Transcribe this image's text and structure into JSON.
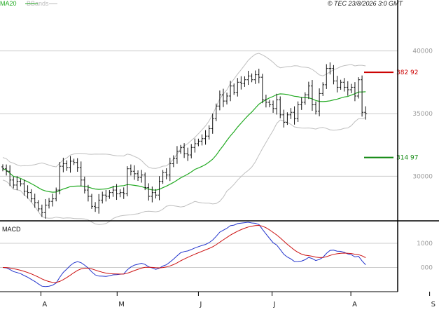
{
  "header": {
    "ma_label": "MA20",
    "bb_label": "BBands",
    "copyright": "© TEC 23/8/2026 3:0 GMT"
  },
  "colors": {
    "ma": "#22aa22",
    "bb": "#bfbfbf",
    "price": "#111111",
    "macd_line": "#2233cc",
    "signal_line": "#cc1111",
    "resistance": "#cc0000",
    "support": "#118811",
    "grid": "#cccccc",
    "axis": "#000000"
  },
  "chart_data": [
    {
      "type": "ohlc",
      "name": "price",
      "y_ticks": [
        {
          "value": 40000,
          "label": "40000"
        },
        {
          "value": 35000,
          "label": "35000"
        },
        {
          "value": 30000,
          "label": "30000"
        }
      ],
      "ylim": [
        26500,
        43500
      ],
      "levels": [
        {
          "value": 38292,
          "label": "382 92",
          "color": "#cc0000"
        },
        {
          "value": 31497,
          "label": "314 97",
          "color": "#118811"
        }
      ],
      "closes": [
        30600,
        30400,
        29700,
        29300,
        29600,
        29400,
        28800,
        28700,
        28200,
        27900,
        27400,
        27100,
        27700,
        28000,
        28200,
        28900,
        30800,
        31000,
        30700,
        31200,
        31100,
        30700,
        29700,
        28900,
        28400,
        27600,
        27500,
        28100,
        28500,
        28400,
        28700,
        28900,
        28600,
        28700,
        28600,
        30600,
        30400,
        30200,
        29900,
        30100,
        29100,
        28400,
        28700,
        28500,
        29600,
        30300,
        30100,
        31000,
        31400,
        32000,
        32300,
        31800,
        31700,
        32300,
        32600,
        32800,
        33000,
        33200,
        33800,
        34600,
        35600,
        36500,
        36000,
        36400,
        37200,
        36700,
        37500,
        37400,
        37700,
        38000,
        37700,
        38100,
        37900,
        36100,
        35900,
        35700,
        35400,
        36100,
        34900,
        34300,
        34900,
        35100,
        34600,
        35700,
        35900,
        36500,
        37200,
        35700,
        35200,
        36600,
        37300,
        38600,
        38600,
        37600,
        37100,
        37500,
        37100,
        36900,
        37100,
        36400,
        37700,
        35100,
        35000
      ],
      "start": "2025-03-17",
      "x_ticks": [
        "A",
        "M",
        "J",
        "J",
        "A",
        "S"
      ],
      "x_tick_dates": [
        "2025-04-01",
        "2025-05-01",
        "2025-06-02",
        "2025-07-01",
        "2025-08-01",
        "2025-09-01"
      ]
    },
    {
      "type": "line",
      "name": "macd",
      "title": "MACD",
      "y_ticks": [
        {
          "value": 1000,
          "label": "1000"
        },
        {
          "value": 0,
          "label": "000"
        }
      ],
      "ylim": [
        -1000,
        1900
      ],
      "zero_line": 0
    }
  ]
}
